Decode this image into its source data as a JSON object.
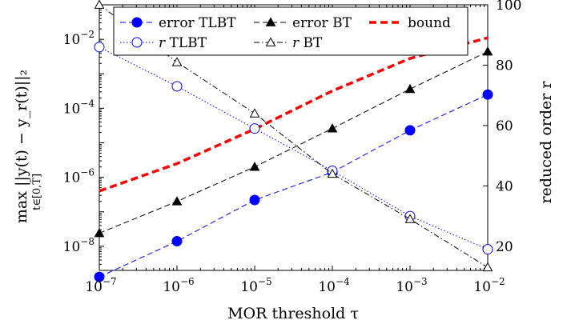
{
  "chart_data": {
    "type": "line",
    "title": "",
    "xlabel": "MOR threshold τ",
    "ylabel_left": "max ||y(t) − y_r(t)||₂",
    "ylabel_left_sub": "t∈[0,T̄]",
    "ylabel_right": "reduced order r",
    "x_scale": "log",
    "y_left_scale": "log",
    "x": [
      1e-07,
      1e-06,
      1e-05,
      0.0001,
      0.001,
      0.01
    ],
    "x_tick_labels": [
      {
        "base": "10",
        "exp": "−7"
      },
      {
        "base": "10",
        "exp": "−6"
      },
      {
        "base": "10",
        "exp": "−5"
      },
      {
        "base": "10",
        "exp": "−4"
      },
      {
        "base": "10",
        "exp": "−3"
      },
      {
        "base": "10",
        "exp": "−2"
      }
    ],
    "y_left_tick_labels": [
      {
        "base": "10",
        "exp": "−8"
      },
      {
        "base": "10",
        "exp": "−6"
      },
      {
        "base": "10",
        "exp": "−4"
      },
      {
        "base": "10",
        "exp": "−2"
      }
    ],
    "y_right_tick_labels": [
      "20",
      "40",
      "60",
      "80",
      "100"
    ],
    "xlim": [
      1e-07,
      0.01
    ],
    "ylim_left": [
      2e-09,
      0.1
    ],
    "ylim_right": [
      12,
      100
    ],
    "grid": false,
    "legend_position": "top",
    "series": [
      {
        "name": "error TLBT",
        "axis": "left",
        "color": "#0000ff",
        "marker": "filled-circle",
        "line": "dashed",
        "values": [
          1.3e-09,
          1.4e-08,
          2.2e-07,
          1.4e-06,
          2.3e-05,
          0.00025
        ]
      },
      {
        "name": "error BT",
        "axis": "left",
        "color": "#000000",
        "marker": "filled-triangle",
        "line": "dashed",
        "values": [
          2.4e-08,
          2e-07,
          2e-06,
          2.6e-05,
          0.00036,
          0.0044
        ]
      },
      {
        "name": "bound",
        "axis": "left",
        "color": "#ff0000",
        "marker": "none",
        "line": "thick-dashed",
        "values": [
          4e-07,
          2.5e-06,
          2.5e-05,
          0.00032,
          0.0028,
          0.011
        ]
      },
      {
        "name": "r TLBT",
        "axis": "right",
        "color": "#0000ff",
        "marker": "open-circle",
        "line": "dotted",
        "values": [
          86,
          73,
          59,
          45,
          30,
          19
        ]
      },
      {
        "name": "r BT",
        "axis": "right",
        "color": "#000000",
        "marker": "open-triangle",
        "line": "dash-dot",
        "values": [
          100,
          81,
          64,
          44,
          29,
          13
        ]
      }
    ]
  }
}
